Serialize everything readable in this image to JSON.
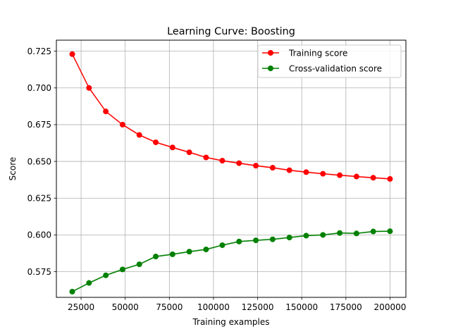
{
  "chart_data": {
    "type": "line",
    "title": "Learning Curve: Boosting",
    "xlabel": "Training examples",
    "ylabel": "Score",
    "xlim": [
      11000,
      209000
    ],
    "ylim": [
      0.5575,
      0.7325
    ],
    "grid": true,
    "legend_position": "top-right",
    "x": [
      20000,
      29500,
      39000,
      48500,
      58000,
      67300,
      76800,
      86300,
      95800,
      105000,
      114500,
      124000,
      133500,
      143000,
      152500,
      162000,
      171500,
      181000,
      190500,
      200000
    ],
    "xticks": [
      25000,
      50000,
      75000,
      100000,
      125000,
      150000,
      175000,
      200000
    ],
    "xtick_labels": [
      "25000",
      "50000",
      "75000",
      "100000",
      "125000",
      "150000",
      "175000",
      "200000"
    ],
    "yticks": [
      0.575,
      0.6,
      0.625,
      0.65,
      0.675,
      0.7,
      0.725
    ],
    "ytick_labels": [
      "0.575",
      "0.600",
      "0.625",
      "0.650",
      "0.675",
      "0.700",
      "0.725"
    ],
    "series": [
      {
        "name": "Training score",
        "color": "#ff0000",
        "values": [
          0.723,
          0.7,
          0.684,
          0.675,
          0.668,
          0.663,
          0.6595,
          0.6562,
          0.6527,
          0.6505,
          0.6488,
          0.6471,
          0.6457,
          0.644,
          0.6427,
          0.6416,
          0.6406,
          0.6397,
          0.6389,
          0.6381
        ]
      },
      {
        "name": "Cross-validation score",
        "color": "#008000",
        "values": [
          0.5614,
          0.5673,
          0.5725,
          0.5765,
          0.58,
          0.5853,
          0.5868,
          0.5886,
          0.5901,
          0.593,
          0.5955,
          0.5963,
          0.597,
          0.5982,
          0.5995,
          0.6,
          0.6013,
          0.601,
          0.6023,
          0.6025
        ]
      }
    ]
  }
}
